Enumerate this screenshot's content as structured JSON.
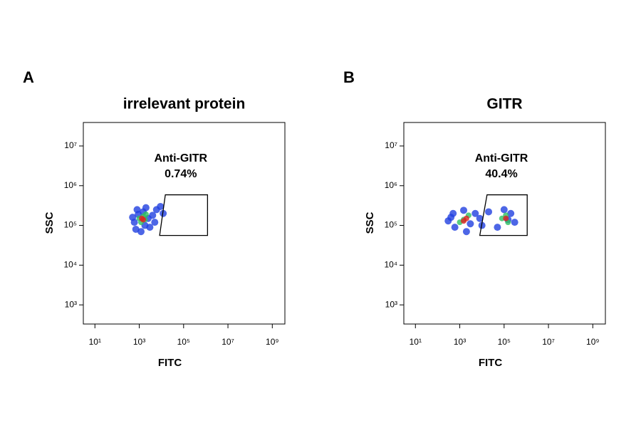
{
  "chart_data": [
    {
      "type": "scatter",
      "panel": "A",
      "title": "irrelevant protein",
      "xlabel": "FITC",
      "ylabel": "SSC",
      "xscale": "log",
      "yscale": "log",
      "xlim": [
        3,
        3700000000
      ],
      "ylim": [
        330,
        39000000
      ],
      "xticks": [
        {
          "value": 10,
          "label": "10¹"
        },
        {
          "value": 1000,
          "label": "10³"
        },
        {
          "value": 100000,
          "label": "10⁵"
        },
        {
          "value": 10000000,
          "label": "10⁷"
        },
        {
          "value": 1000000000,
          "label": "10⁹"
        }
      ],
      "yticks": [
        {
          "value": 1000,
          "label": "10³"
        },
        {
          "value": 10000,
          "label": "10⁴"
        },
        {
          "value": 100000,
          "label": "10⁵"
        },
        {
          "value": 1000000,
          "label": "10⁶"
        },
        {
          "value": 10000000,
          "label": "10⁷"
        }
      ],
      "gate": {
        "name": "Anti-GITR",
        "percent": "0.74%",
        "x": [
          15000,
          1200000,
          1200000,
          8300
        ],
        "y": [
          590000,
          590000,
          56000,
          56000
        ]
      },
      "series": [
        {
          "color": "#2040e0",
          "x": [
            600,
            800,
            1500,
            2500,
            3000,
            1200,
            500,
            700,
            2000,
            4000,
            6000,
            9000,
            12000,
            5000,
            1800,
            900
          ],
          "y": [
            120000,
            250000,
            220000,
            150000,
            90000,
            70000,
            160000,
            80000,
            280000,
            180000,
            250000,
            300000,
            200000,
            120000,
            100000,
            190000
          ]
        },
        {
          "color": "#30c060",
          "x": [
            1000,
            1500,
            1200,
            1800,
            2000
          ],
          "y": [
            150000,
            170000,
            120000,
            140000,
            190000
          ]
        },
        {
          "color": "#e02020",
          "x": [
            1300,
            1500
          ],
          "y": [
            150000,
            140000
          ]
        }
      ]
    },
    {
      "type": "scatter",
      "panel": "B",
      "title": "GITR",
      "xlabel": "FITC",
      "ylabel": "SSC",
      "xscale": "log",
      "yscale": "log",
      "xlim": [
        3,
        3700000000
      ],
      "ylim": [
        330,
        39000000
      ],
      "xticks": [
        {
          "value": 10,
          "label": "10¹"
        },
        {
          "value": 1000,
          "label": "10³"
        },
        {
          "value": 100000,
          "label": "10⁵"
        },
        {
          "value": 10000000,
          "label": "10⁷"
        },
        {
          "value": 1000000000,
          "label": "10⁹"
        }
      ],
      "yticks": [
        {
          "value": 1000,
          "label": "10³"
        },
        {
          "value": 10000,
          "label": "10⁴"
        },
        {
          "value": 100000,
          "label": "10⁵"
        },
        {
          "value": 1000000,
          "label": "10⁶"
        },
        {
          "value": 10000000,
          "label": "10⁷"
        }
      ],
      "gate": {
        "name": "Anti-GITR",
        "percent": "40.4%",
        "x": [
          17000,
          1100000,
          1100000,
          8000
        ],
        "y": [
          590000,
          590000,
          56000,
          56000
        ]
      },
      "series": [
        {
          "color": "#2040e0",
          "x": [
            300,
            500,
            600,
            1500,
            3000,
            5000,
            8000,
            20000,
            50000,
            100000,
            200000,
            300000,
            400,
            10000,
            150000,
            2000
          ],
          "y": [
            130000,
            200000,
            90000,
            240000,
            110000,
            200000,
            150000,
            220000,
            90000,
            250000,
            200000,
            120000,
            160000,
            100000,
            140000,
            70000
          ]
        },
        {
          "color": "#30c060",
          "x": [
            1500,
            2500,
            1000,
            80000,
            120000,
            150000
          ],
          "y": [
            140000,
            180000,
            120000,
            150000,
            180000,
            120000
          ]
        },
        {
          "color": "#e02020",
          "x": [
            2000,
            1500,
            120000
          ],
          "y": [
            150000,
            130000,
            150000
          ]
        }
      ]
    }
  ]
}
